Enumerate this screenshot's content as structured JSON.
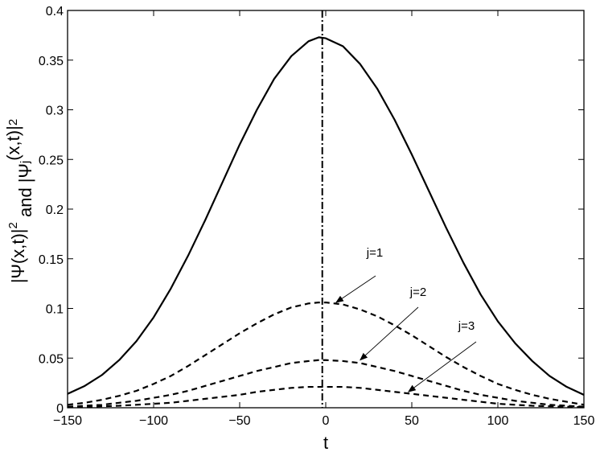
{
  "chart_data": {
    "type": "line",
    "title": "",
    "xlabel": "t",
    "ylabel": {
      "parts": [
        "|Ψ(x,t)|",
        "2",
        " and |Ψ",
        "j",
        "(x,t)|",
        "2"
      ]
    },
    "xlim": [
      -150,
      150
    ],
    "ylim": [
      0,
      0.4
    ],
    "xticks": [
      -150,
      -100,
      -50,
      0,
      50,
      100,
      150
    ],
    "xtick_labels": [
      "−150",
      "−100",
      "−50",
      "0",
      "50",
      "100",
      "150"
    ],
    "yticks": [
      0,
      0.05,
      0.1,
      0.15,
      0.2,
      0.25,
      0.3,
      0.35,
      0.4
    ],
    "ytick_labels": [
      "0",
      "0.05",
      "0.1",
      "0.15",
      "0.2",
      "0.25",
      "0.3",
      "0.35",
      "0.4"
    ],
    "grid": false,
    "x": [
      -150,
      -140,
      -130,
      -120,
      -110,
      -100,
      -90,
      -80,
      -70,
      -60,
      -50,
      -40,
      -30,
      -20,
      -10,
      -4,
      0,
      10,
      20,
      30,
      40,
      50,
      60,
      70,
      80,
      90,
      100,
      110,
      120,
      130,
      140,
      150
    ],
    "series": [
      {
        "style": "solid",
        "values": [
          0.014,
          0.022,
          0.033,
          0.048,
          0.067,
          0.091,
          0.12,
          0.153,
          0.189,
          0.227,
          0.265,
          0.3,
          0.331,
          0.354,
          0.369,
          0.373,
          0.372,
          0.364,
          0.346,
          0.321,
          0.29,
          0.255,
          0.218,
          0.181,
          0.146,
          0.114,
          0.087,
          0.065,
          0.047,
          0.032,
          0.021,
          0.013
        ]
      },
      {
        "style": "dashed",
        "label": "j=1",
        "values": [
          0.003,
          0.005,
          0.008,
          0.012,
          0.017,
          0.024,
          0.032,
          0.042,
          0.053,
          0.064,
          0.075,
          0.085,
          0.094,
          0.101,
          0.105,
          0.106,
          0.106,
          0.104,
          0.099,
          0.092,
          0.083,
          0.073,
          0.062,
          0.051,
          0.041,
          0.032,
          0.024,
          0.018,
          0.013,
          0.009,
          0.006,
          0.003
        ]
      },
      {
        "style": "dashed",
        "label": "j=2",
        "values": [
          0.001,
          0.002,
          0.003,
          0.005,
          0.007,
          0.01,
          0.013,
          0.017,
          0.022,
          0.027,
          0.032,
          0.037,
          0.041,
          0.045,
          0.047,
          0.048,
          0.048,
          0.047,
          0.045,
          0.041,
          0.037,
          0.032,
          0.027,
          0.022,
          0.017,
          0.013,
          0.01,
          0.007,
          0.005,
          0.003,
          0.002,
          0.001
        ]
      },
      {
        "style": "dashed",
        "label": "j=3",
        "values": [
          0.0005,
          0.001,
          0.0015,
          0.002,
          0.003,
          0.004,
          0.005,
          0.007,
          0.009,
          0.011,
          0.013,
          0.016,
          0.018,
          0.02,
          0.021,
          0.021,
          0.021,
          0.021,
          0.02,
          0.018,
          0.016,
          0.014,
          0.012,
          0.01,
          0.008,
          0.006,
          0.004,
          0.003,
          0.002,
          0.0015,
          0.001,
          0.0005
        ]
      }
    ],
    "vertical_line": {
      "x": -2,
      "style": "dash-dot"
    },
    "annotations": [
      {
        "text": "j=1",
        "arrow_to": [
          6,
          0.106
        ]
      },
      {
        "text": "j=2",
        "arrow_to": [
          20,
          0.048
        ]
      },
      {
        "text": "j=3",
        "arrow_to": [
          48,
          0.016
        ]
      }
    ]
  }
}
